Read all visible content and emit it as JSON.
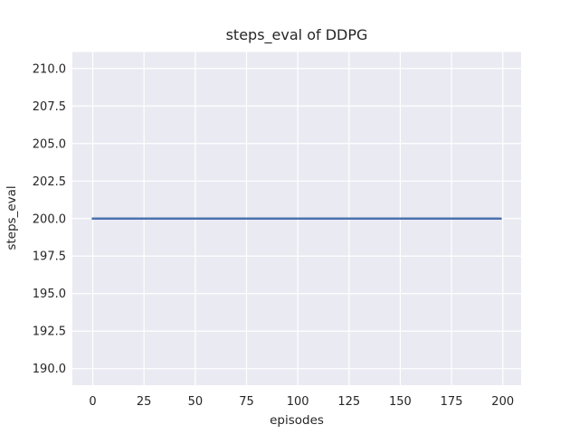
{
  "title": "steps_eval of DDPG",
  "chart_data": {
    "type": "line",
    "title": "steps_eval of DDPG",
    "xlabel": "episodes",
    "ylabel": "steps_eval",
    "series": [
      {
        "name": "steps_eval",
        "color": "#4c72b0",
        "points": [
          [
            0,
            200.0
          ],
          [
            199,
            200.0
          ]
        ]
      }
    ],
    "xticks": [
      0,
      25,
      50,
      75,
      100,
      125,
      150,
      175,
      200
    ],
    "xtick_labels": [
      "0",
      "25",
      "50",
      "75",
      "100",
      "125",
      "150",
      "175",
      "200"
    ],
    "yticks": [
      190.0,
      192.5,
      195.0,
      197.5,
      200.0,
      202.5,
      205.0,
      207.5,
      210.0
    ],
    "ytick_labels": [
      "190.0",
      "192.5",
      "195.0",
      "197.5",
      "200.0",
      "202.5",
      "205.0",
      "207.5",
      "210.0"
    ],
    "xlim": [
      -9.95,
      208.95
    ],
    "ylim": [
      188.9,
      211.1
    ],
    "grid": true,
    "legend": false,
    "plot_bg_color": "#eaeaf2",
    "grid_color": "#ffffff",
    "text_color": "#262626",
    "line_color": "#4c72b0"
  }
}
